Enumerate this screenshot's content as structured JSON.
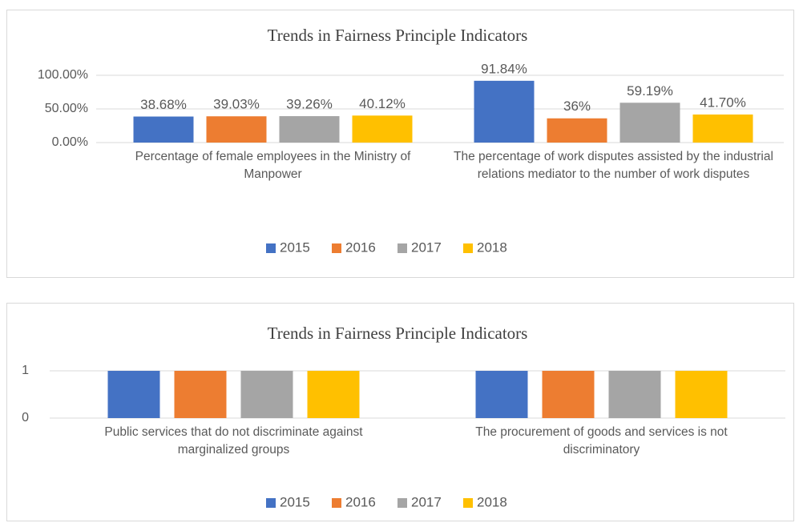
{
  "chart_data": [
    {
      "type": "bar",
      "title": "Trends in Fairness Principle Indicators",
      "categories": [
        "Percentage of female employees in the Ministry of Manpower",
        "The percentage of work disputes assisted by the industrial relations mediator to the number of work disputes"
      ],
      "series": [
        {
          "name": "2015",
          "color": "#4472c4",
          "values": [
            38.68,
            91.84
          ],
          "value_labels": [
            "38.68%",
            "91.84%"
          ]
        },
        {
          "name": "2016",
          "color": "#ed7d31",
          "values": [
            39.03,
            36
          ],
          "value_labels": [
            "39.03%",
            "36%"
          ]
        },
        {
          "name": "2017",
          "color": "#a5a5a5",
          "values": [
            39.26,
            59.19
          ],
          "value_labels": [
            "39.26%",
            "59.19%"
          ]
        },
        {
          "name": "2018",
          "color": "#ffc000",
          "values": [
            40.12,
            41.7
          ],
          "value_labels": [
            "40.12%",
            "41.70%"
          ]
        }
      ],
      "ylim": [
        0,
        100
      ],
      "yticks": [
        {
          "value": 0,
          "label": "0.00%"
        },
        {
          "value": 50,
          "label": "50.00%"
        },
        {
          "value": 100,
          "label": "100.00%"
        }
      ],
      "grid": true,
      "legend": "bottom"
    },
    {
      "type": "bar",
      "title": "Trends in Fairness Principle Indicators",
      "categories": [
        "Public services that do not discriminate against marginalized groups",
        "The procurement of goods and services is not discriminatory"
      ],
      "series": [
        {
          "name": "2015",
          "color": "#4472c4",
          "values": [
            1,
            1
          ]
        },
        {
          "name": "2016",
          "color": "#ed7d31",
          "values": [
            1,
            1
          ]
        },
        {
          "name": "2017",
          "color": "#a5a5a5",
          "values": [
            1,
            1
          ]
        },
        {
          "name": "2018",
          "color": "#ffc000",
          "values": [
            1,
            1
          ]
        }
      ],
      "ylim": [
        0,
        1
      ],
      "yticks": [
        0,
        1
      ],
      "grid": true,
      "legend": "bottom"
    }
  ]
}
